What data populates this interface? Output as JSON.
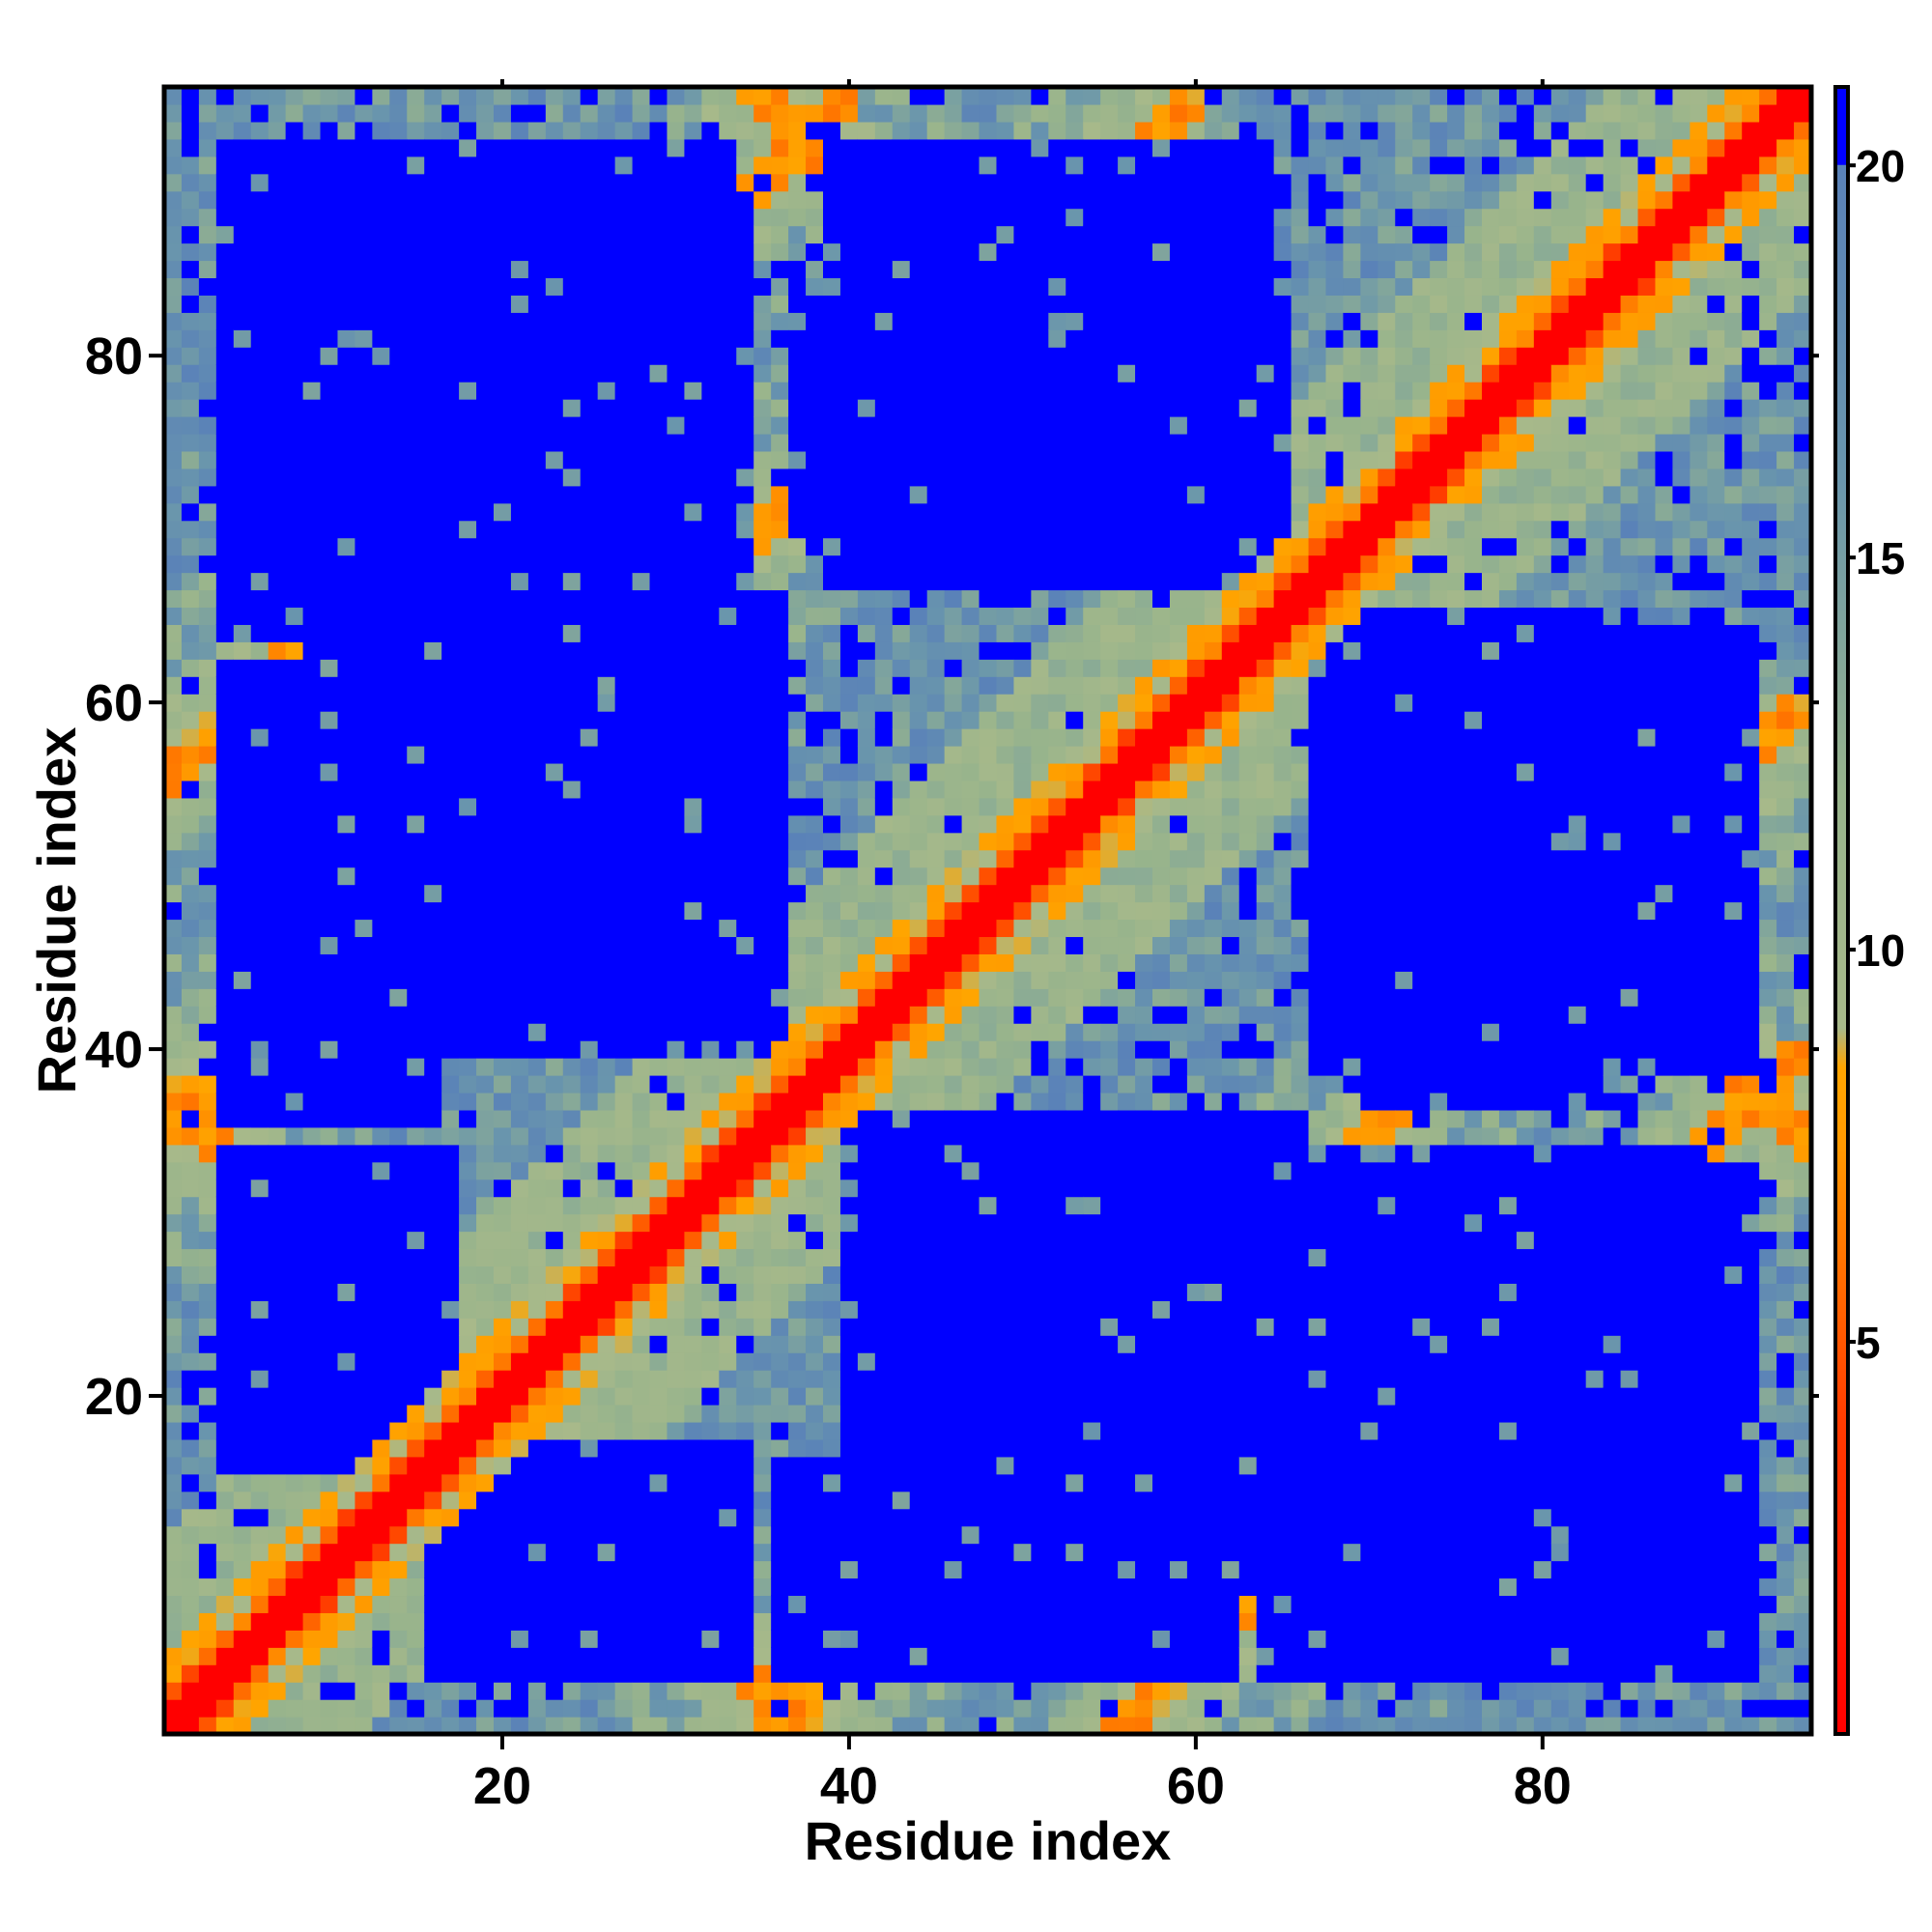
{
  "chart_data": {
    "type": "heatmap",
    "title": "",
    "xlabel": "Residue index",
    "ylabel": "Residue index",
    "n_residues": 95,
    "xlim": [
      1,
      95
    ],
    "ylim": [
      1,
      95
    ],
    "x_ticks": [
      20,
      40,
      60,
      80
    ],
    "y_ticks": [
      20,
      40,
      60,
      80
    ],
    "x_tick_labels": [
      "20",
      "40",
      "60",
      "80"
    ],
    "y_tick_labels": [
      "20",
      "40",
      "60",
      "80"
    ],
    "value_range": [
      0,
      21
    ],
    "colorbar": {
      "ticks": [
        5,
        10,
        15,
        20
      ],
      "tick_labels": [
        "5",
        "10",
        "15",
        "20"
      ],
      "stops": [
        {
          "value": 0,
          "color": "#ff0000"
        },
        {
          "value": 4,
          "color": "#ff3c00"
        },
        {
          "value": 7.5,
          "color": "#ff9900"
        },
        {
          "value": 8.5,
          "color": "#ffa500"
        },
        {
          "value": 9.0,
          "color": "#a8b98a"
        },
        {
          "value": 12,
          "color": "#98b48c"
        },
        {
          "value": 16,
          "color": "#6a96ac"
        },
        {
          "value": 20,
          "color": "#5a82b8"
        },
        {
          "value": 20.01,
          "color": "#0000ff"
        },
        {
          "value": 21,
          "color": "#0000ff"
        }
      ]
    },
    "structure": {
      "description": "Symmetric residue-residue distance map; diagonal near 0, beta-sheet contacts as anti-diagonal bands",
      "contact_bands": [
        {
          "type": "anti-diagonal",
          "i_plus_j": 38,
          "i_range": [
            1,
            37
          ]
        },
        {
          "type": "anti-diagonal",
          "i_plus_j": 130,
          "i_range": [
            35,
            95
          ]
        },
        {
          "type": "parallel",
          "offset": 35,
          "i_range": [
            1,
            60
          ]
        },
        {
          "type": "parallel",
          "offset": 55,
          "i_range": [
            1,
            40
          ]
        }
      ],
      "far_blocks": [
        {
          "x": [
            4,
            17
          ],
          "y": [
            16,
            34
          ]
        },
        {
          "x": [
            36,
            62
          ],
          "y": [
            4,
            16
          ]
        },
        {
          "x": [
            41,
            66
          ],
          "y": [
            17,
            36
          ]
        },
        {
          "x": [
            64,
            89
          ],
          "y": [
            4,
            34
          ]
        },
        {
          "x": [
            70,
            85
          ],
          "y": [
            37,
            65
          ]
        },
        {
          "x": [
            9,
            35
          ],
          "y": [
            40,
            65
          ]
        },
        {
          "x": [
            4,
            33
          ],
          "y": [
            67,
            92
          ]
        },
        {
          "x": [
            39,
            64
          ],
          "y": [
            67,
            92
          ]
        }
      ]
    }
  }
}
